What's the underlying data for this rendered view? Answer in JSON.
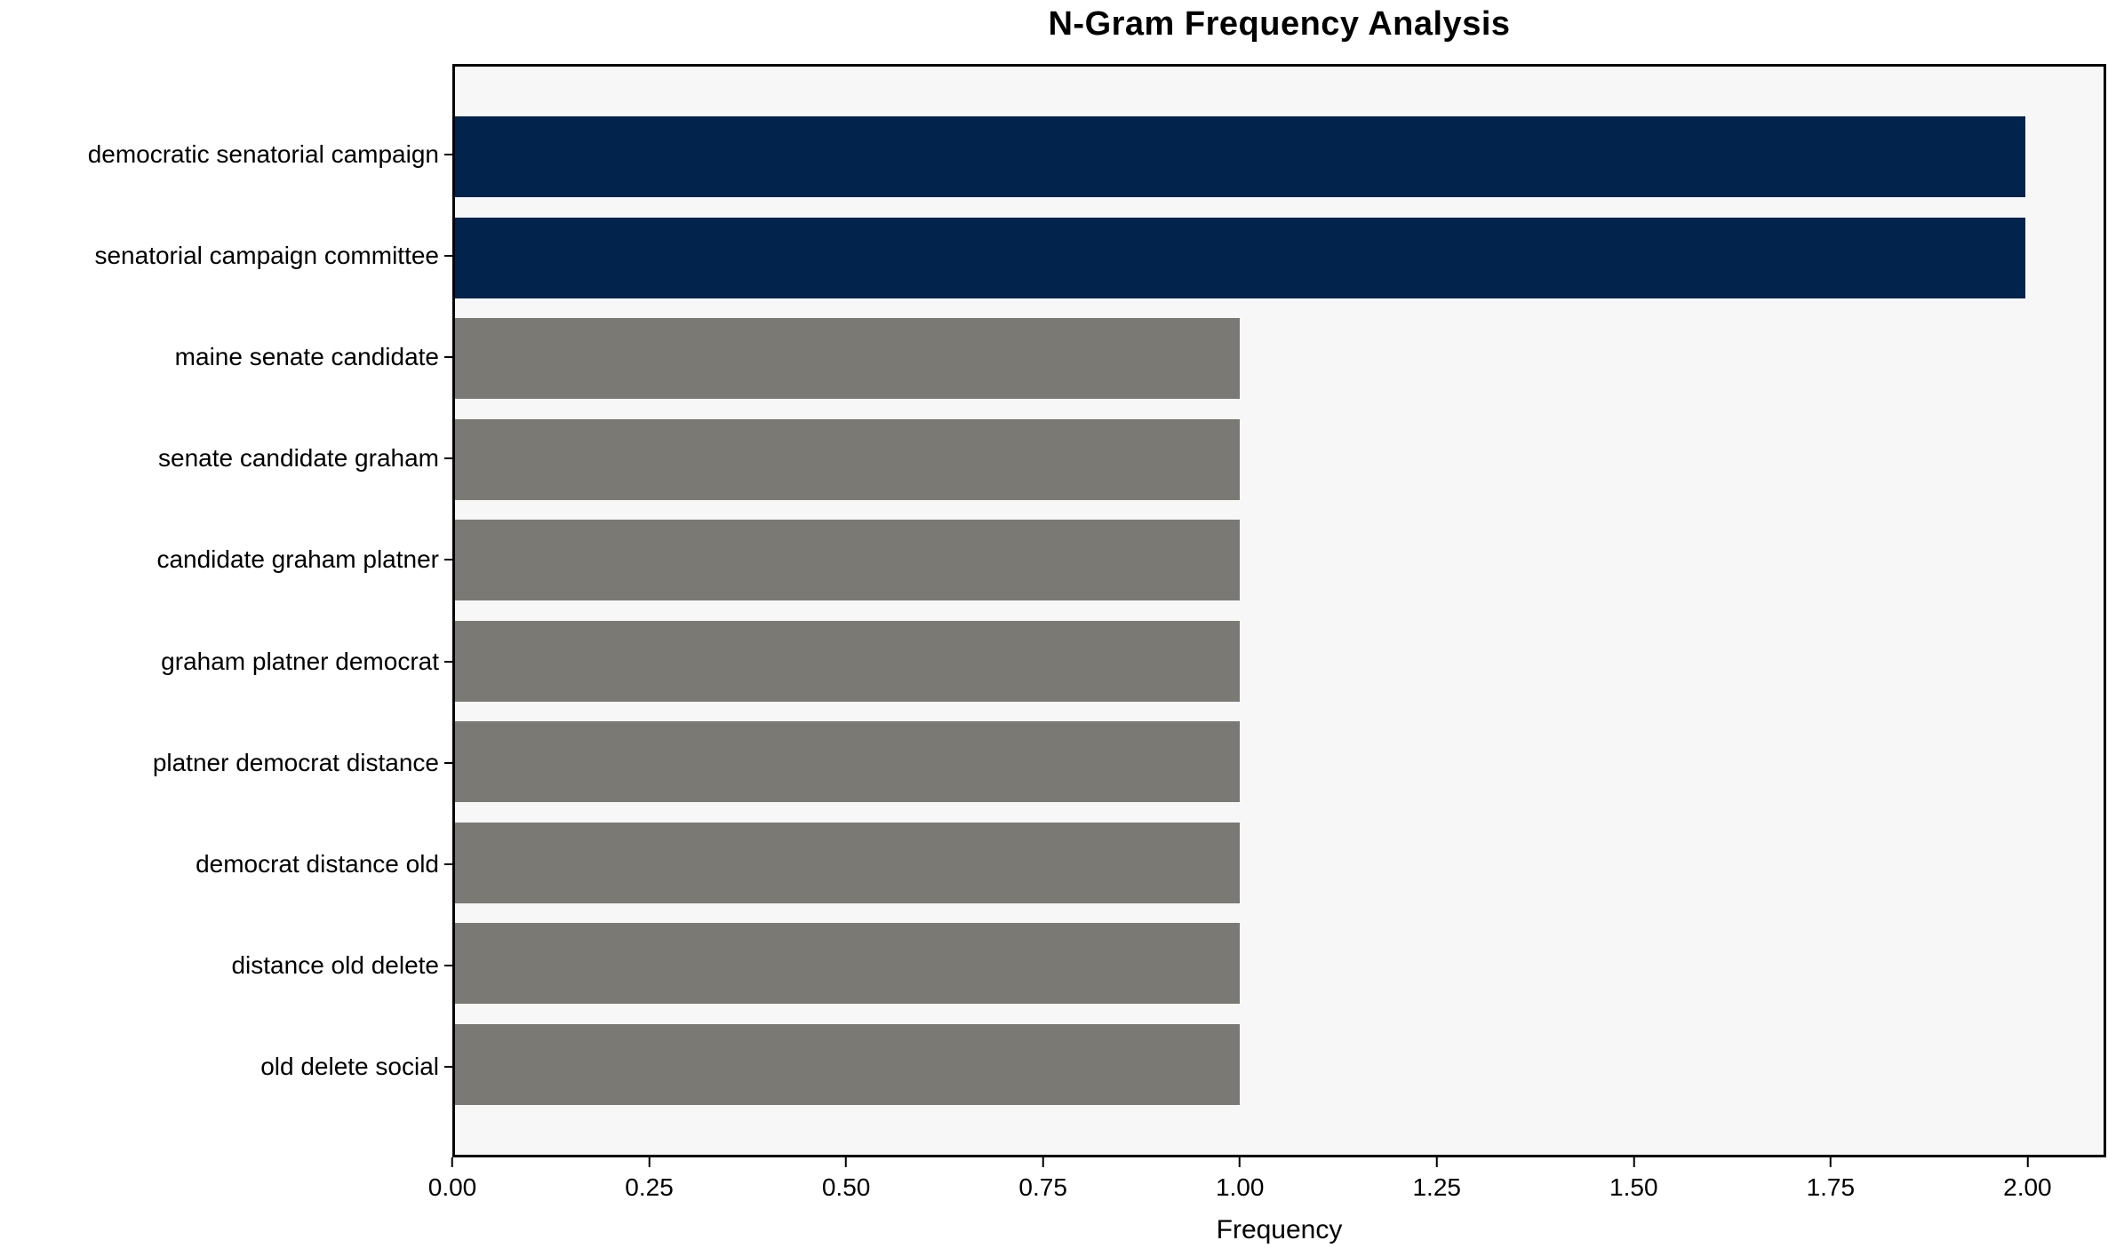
{
  "chart_data": {
    "type": "bar",
    "orientation": "horizontal",
    "title": "N-Gram Frequency Analysis",
    "xlabel": "Frequency",
    "ylabel": "",
    "categories": [
      "democratic senatorial campaign",
      "senatorial campaign committee",
      "maine senate candidate",
      "senate candidate graham",
      "candidate graham platner",
      "graham platner democrat",
      "platner democrat distance",
      "democrat distance old",
      "distance old delete",
      "old delete social"
    ],
    "values": [
      2,
      2,
      1,
      1,
      1,
      1,
      1,
      1,
      1,
      1
    ],
    "bar_colors": [
      "#02234c",
      "#02234c",
      "#7b7974",
      "#7b7974",
      "#7b7974",
      "#7b7974",
      "#7b7974",
      "#7b7974",
      "#7b7974",
      "#7b7974"
    ],
    "xlim": [
      0,
      2.1
    ],
    "xticks": [
      {
        "value": 0.0,
        "label": "0.00"
      },
      {
        "value": 0.25,
        "label": "0.25"
      },
      {
        "value": 0.5,
        "label": "0.50"
      },
      {
        "value": 0.75,
        "label": "0.75"
      },
      {
        "value": 1.0,
        "label": "1.00"
      },
      {
        "value": 1.25,
        "label": "1.25"
      },
      {
        "value": 1.5,
        "label": "1.50"
      },
      {
        "value": 1.75,
        "label": "1.75"
      },
      {
        "value": 2.0,
        "label": "2.00"
      }
    ],
    "grid": false,
    "legend": null,
    "colors": {
      "highlight": "#02234c",
      "base": "#7b7974",
      "plot_bg": "#f7f7f7",
      "figure_bg": "#ffffff",
      "spine": "#000000"
    }
  }
}
